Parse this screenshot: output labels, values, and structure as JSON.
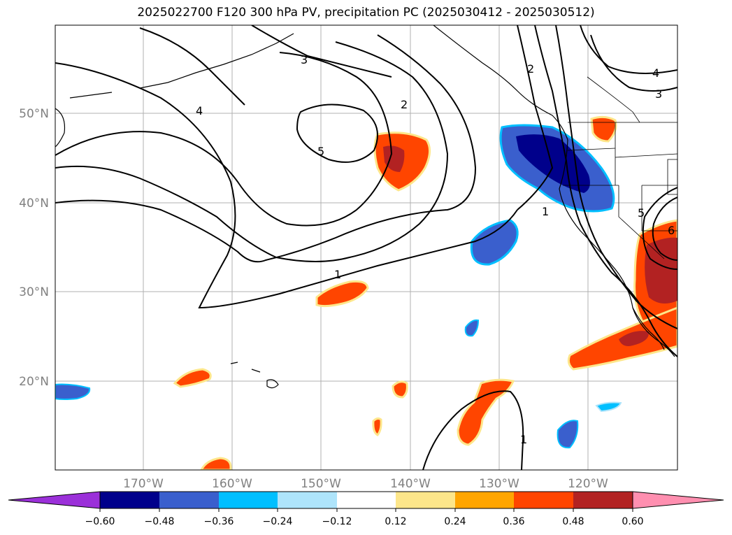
{
  "title": "2025022700 F120 300 hPa PV, precipitation PC (2025030412 - 2025030512)",
  "map": {
    "lat_labels": [
      "50°N",
      "40°N",
      "30°N",
      "20°N"
    ],
    "lon_labels": [
      "170°W",
      "160°W",
      "150°W",
      "140°W",
      "130°W",
      "120°W"
    ],
    "contour_labels": [
      "1",
      "2",
      "3",
      "4",
      "5",
      "1",
      "2",
      "3",
      "4",
      "5",
      "6",
      "1"
    ]
  },
  "colorbar": {
    "ticks": [
      "−0.60",
      "−0.48",
      "−0.36",
      "−0.24",
      "−0.12",
      "0.12",
      "0.24",
      "0.36",
      "0.48",
      "0.60"
    ],
    "colors": [
      "#9b30d9",
      "#00008b",
      "#3a5fcd",
      "#00bfff",
      "#aee4fb",
      "#ffffff",
      "#fde68a",
      "#ffa500",
      "#ff4500",
      "#b22222",
      "#ff8fb0"
    ]
  },
  "colors": {
    "neg_strong": "#00008b",
    "neg_mid": "#3a5fcd",
    "neg_light": "#00bfff",
    "neg_pale": "#aee4fb",
    "pos_pale": "#fde68a",
    "pos_light": "#ffa500",
    "pos_mid": "#ff4500",
    "pos_strong": "#b22222"
  }
}
